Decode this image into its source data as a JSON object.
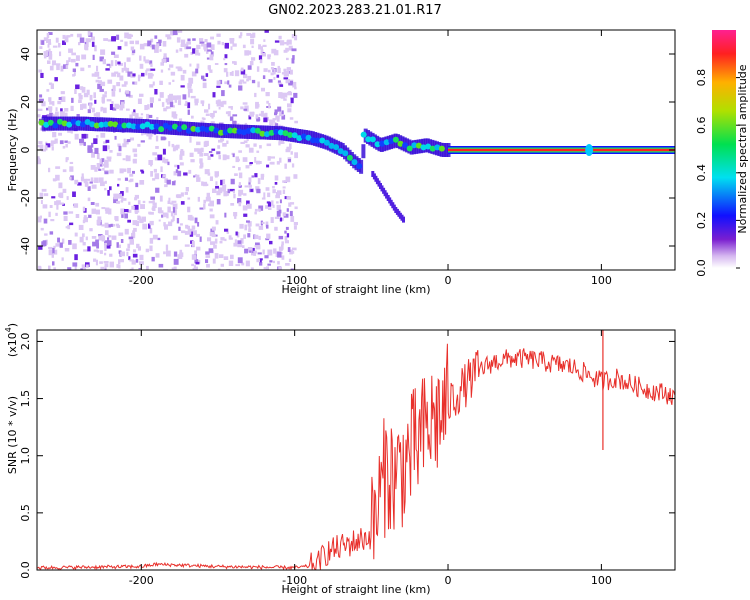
{
  "title": "GN02.2023.283.21.01.R17",
  "chart_data": [
    {
      "type": "heatmap",
      "xlabel": "Height of straight line (km)",
      "ylabel": "Frequency (Hz)",
      "xlim": [
        -268,
        148
      ],
      "ylim": [
        -50,
        50
      ],
      "xticks": [
        -200,
        -100,
        0,
        100
      ],
      "yticks": [
        -40,
        -20,
        0,
        20,
        40
      ],
      "colorbar": {
        "label": "Normalized spectral amplitude",
        "range": [
          0,
          1
        ],
        "ticks": [
          "0.0",
          "0.2",
          "0.4",
          "0.6",
          "0.8"
        ],
        "tick_values": [
          0,
          0.2,
          0.4,
          0.6,
          0.8
        ]
      },
      "ridge": {
        "x": [
          -265,
          -240,
          -200,
          -150,
          -110,
          -90,
          -80,
          -70,
          -62,
          -58,
          -55,
          -50,
          -45,
          -35,
          -25,
          -15,
          -5,
          0,
          50,
          90,
          148
        ],
        "y": [
          11,
          11,
          10,
          8,
          7,
          5,
          3,
          0,
          -5,
          -7,
          6,
          4,
          2,
          4,
          1,
          2,
          0,
          0,
          0,
          0,
          0
        ]
      },
      "branch": {
        "x": [
          -50,
          -45,
          -40,
          -35,
          -30
        ],
        "y": [
          -10,
          -15,
          -20,
          -25,
          -29
        ]
      },
      "noise_region": [
        -268,
        -100
      ]
    },
    {
      "type": "line",
      "xlabel": "Height of straight line (km)",
      "ylabel": "SNR (10 * v/v)",
      "scale_label": "(x10",
      "scale_exp": "4",
      "xlim": [
        -268,
        148
      ],
      "ylim": [
        0,
        2.1
      ],
      "xticks": [
        -200,
        -100,
        0,
        100
      ],
      "yticks": [
        0,
        0.5,
        1,
        1.5,
        2
      ],
      "ytick_labels": [
        "0.0",
        "0.5",
        "1.0",
        "1.5",
        "2.0"
      ],
      "series": [
        {
          "color": "#e8302b",
          "x": [
            -268,
            -200,
            -190,
            -150,
            -100,
            -85,
            -80,
            -70,
            -60,
            -50,
            -45,
            -40,
            -35,
            -30,
            -25,
            -20,
            -15,
            -10,
            -5,
            0,
            10,
            20,
            30,
            40,
            50,
            60,
            70,
            80,
            90,
            100,
            110,
            120,
            130,
            140,
            148
          ],
          "y": [
            0.02,
            0.03,
            0.05,
            0.03,
            0.02,
            0.04,
            0.15,
            0.2,
            0.25,
            0.3,
            0.6,
            0.9,
            0.8,
            0.9,
            1.0,
            1.1,
            1.2,
            1.3,
            1.35,
            1.45,
            1.6,
            1.75,
            1.82,
            1.85,
            1.85,
            1.83,
            1.8,
            1.78,
            1.72,
            1.65,
            1.68,
            1.62,
            1.58,
            1.55,
            1.52
          ]
        }
      ]
    }
  ]
}
